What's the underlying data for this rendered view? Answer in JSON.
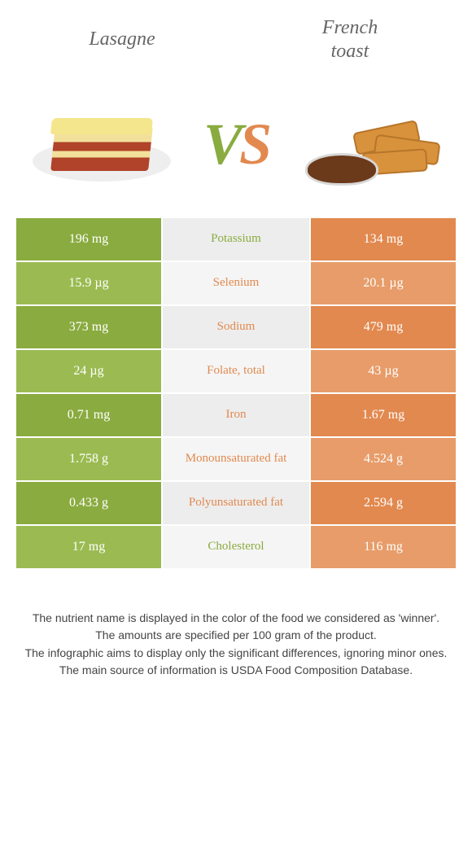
{
  "header": {
    "left_title": "Lasagne",
    "right_title": "French\ntoast"
  },
  "vs": {
    "v": "V",
    "s": "S"
  },
  "colors": {
    "left_dark": "#8aab3f",
    "left_light": "#9bbb52",
    "mid_dark": "#ededed",
    "mid_light": "#f5f5f5",
    "right_dark": "#e2894f",
    "right_light": "#e79c69",
    "label_green": "#8aab3f",
    "label_orange": "#e2894f"
  },
  "rows": [
    {
      "left": "196 mg",
      "label": "Potassium",
      "right": "134 mg",
      "winner": "left"
    },
    {
      "left": "15.9 µg",
      "label": "Selenium",
      "right": "20.1 µg",
      "winner": "right"
    },
    {
      "left": "373 mg",
      "label": "Sodium",
      "right": "479 mg",
      "winner": "right"
    },
    {
      "left": "24 µg",
      "label": "Folate, total",
      "right": "43 µg",
      "winner": "right"
    },
    {
      "left": "0.71 mg",
      "label": "Iron",
      "right": "1.67 mg",
      "winner": "right"
    },
    {
      "left": "1.758 g",
      "label": "Monounsaturated fat",
      "right": "4.524 g",
      "winner": "right"
    },
    {
      "left": "0.433 g",
      "label": "Polyunsaturated fat",
      "right": "2.594 g",
      "winner": "right"
    },
    {
      "left": "17 mg",
      "label": "Cholesterol",
      "right": "116 mg",
      "winner": "left"
    }
  ],
  "footer": {
    "l1": "The nutrient name is displayed in the color of the food we considered as 'winner'.",
    "l2": "The amounts are specified per 100 gram of the product.",
    "l3": "The infographic aims to display only the significant differences, ignoring minor ones.",
    "l4": "The main source of information is USDA Food Composition Database."
  }
}
